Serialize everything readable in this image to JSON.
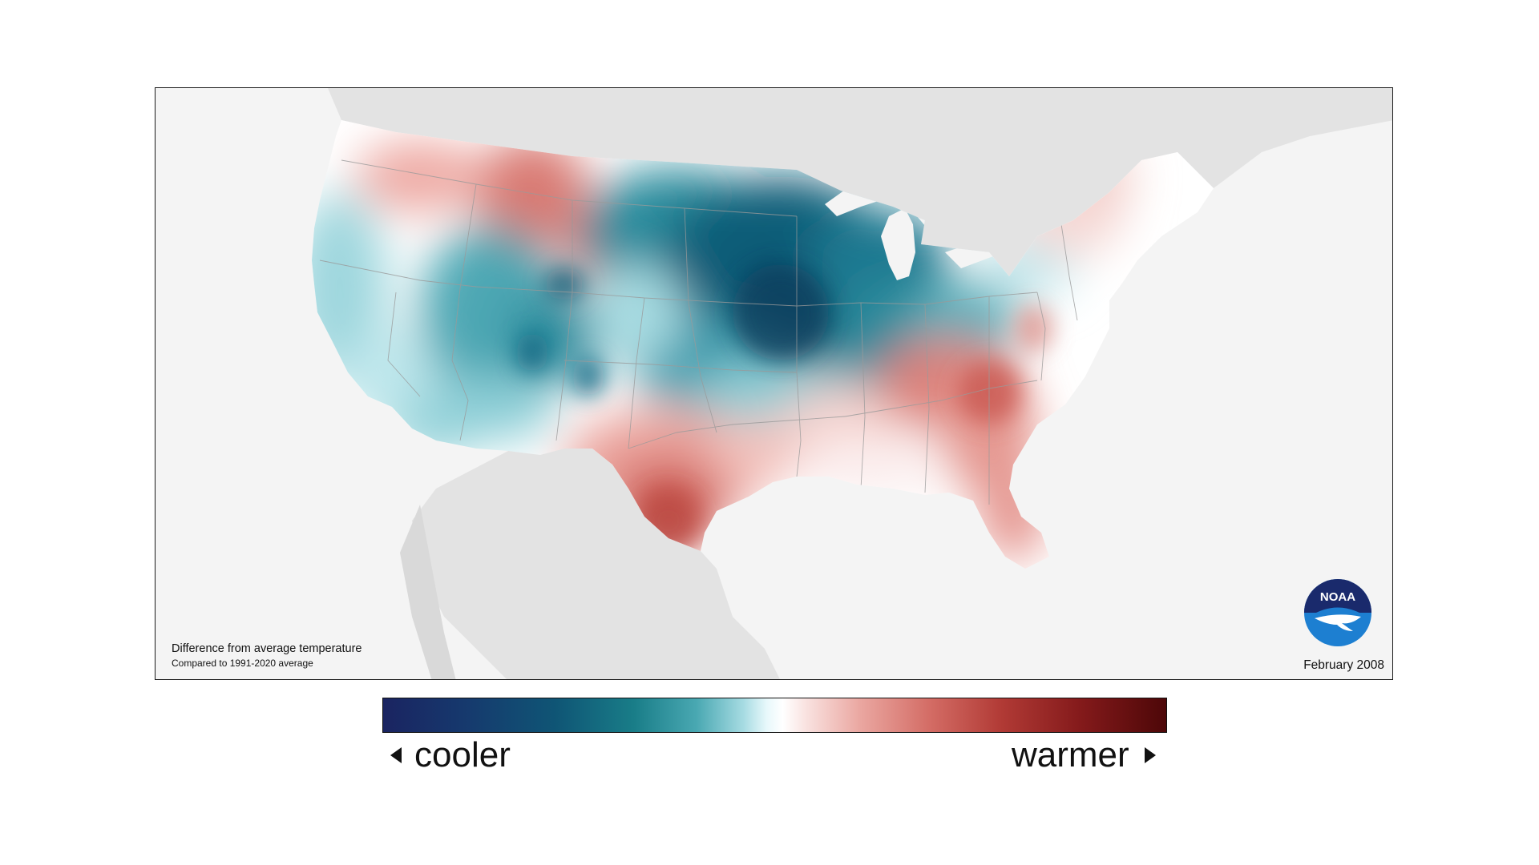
{
  "map": {
    "caption_main": "Difference from average temperature",
    "caption_sub": "Compared to 1991-2020 average",
    "date": "February 2008",
    "logo_text": "NOAA",
    "colors": {
      "background": "#f4f4f4",
      "land_outside": "#e3e3e3",
      "cool_strong": "#0c5674",
      "cool_mid": "#4ea7b4",
      "cool_light": "#c8ecef",
      "neutral": "#ffffff",
      "warm_light": "#f5c9c4",
      "warm_mid": "#e08a83",
      "warm_strong": "#c44a44"
    }
  },
  "legend": {
    "cooler_label": "cooler",
    "warmer_label": "warmer",
    "cooler_icon": "left-triangle-icon",
    "warmer_icon": "right-triangle-icon"
  }
}
